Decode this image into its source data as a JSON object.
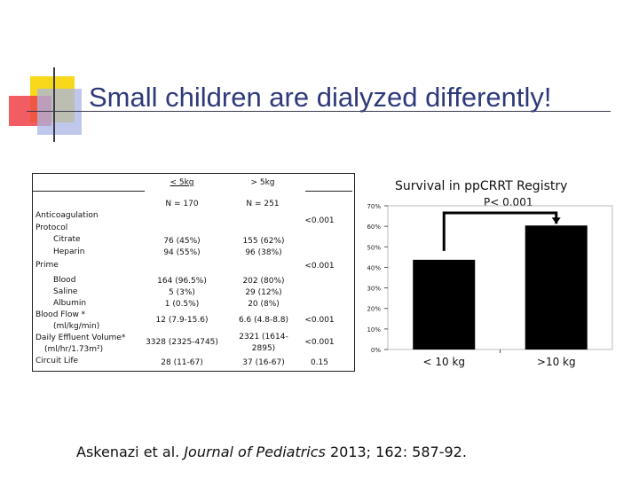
{
  "slide": {
    "title": "Small children are dialyzed differently!",
    "citation": {
      "authors": "Askenazi et al. ",
      "journal": "Journal of Pediatrics",
      "rest": " 2013; 162: 587-92."
    }
  },
  "table": {
    "col1_header": "< 5kg",
    "col2_header": "> 5kg",
    "col1_n": "N = 170",
    "col2_n": "N = 251",
    "rows": [
      {
        "label": "Anticoagulation",
        "c1": "",
        "c2": "",
        "p": "<0.001"
      },
      {
        "label": "Protocol",
        "c1": "",
        "c2": "",
        "p": ""
      },
      {
        "label": "Citrate",
        "c1": "76 (45%)",
        "c2": "155 (62%)",
        "p": ""
      },
      {
        "label": "Heparin",
        "c1": "94 (55%)",
        "c2": "96 (38%)",
        "p": ""
      },
      {
        "label": "Prime",
        "c1": "",
        "c2": "",
        "p": "<0.001"
      },
      {
        "label": "Blood",
        "c1": "164 (96.5%)",
        "c2": "202 (80%)",
        "p": ""
      },
      {
        "label": "Saline",
        "c1": "5 (3%)",
        "c2": "29 (12%)",
        "p": ""
      },
      {
        "label": "Albumin",
        "c1": "1 (0.5%)",
        "c2": "20 (8%)",
        "p": ""
      },
      {
        "label": "Blood Flow *",
        "c1": "12 (7.9-15.6)",
        "c2": "6.6 (4.8-8.8)",
        "p": "<0.001"
      },
      {
        "label": "(ml/kg/min)",
        "c1": "",
        "c2": "",
        "p": ""
      },
      {
        "label": "Daily Effluent Volume*",
        "c1": "3328 (2325-4745)",
        "c2": "2321 (1614-",
        "p": "<0.001"
      },
      {
        "label": "(ml/hr/1.73m²)",
        "c1": "",
        "c2": "2895)",
        "p": ""
      },
      {
        "label": "Circuit Life",
        "c1": "28 (11-67)",
        "c2": "37 (16-67)",
        "p": "0.15"
      }
    ]
  },
  "chart_data": {
    "type": "bar",
    "title": "Survival in ppCRRT Registry",
    "annotation": "P< 0.001",
    "categories": [
      "< 10 kg",
      ">10 kg"
    ],
    "values": [
      43.7,
      60.4
    ],
    "ylim": [
      0,
      70
    ],
    "yticks": [
      "0%",
      "10%",
      "20%",
      "30%",
      "40%",
      "50%",
      "60%",
      "70%"
    ],
    "bar_color": "#000000"
  }
}
